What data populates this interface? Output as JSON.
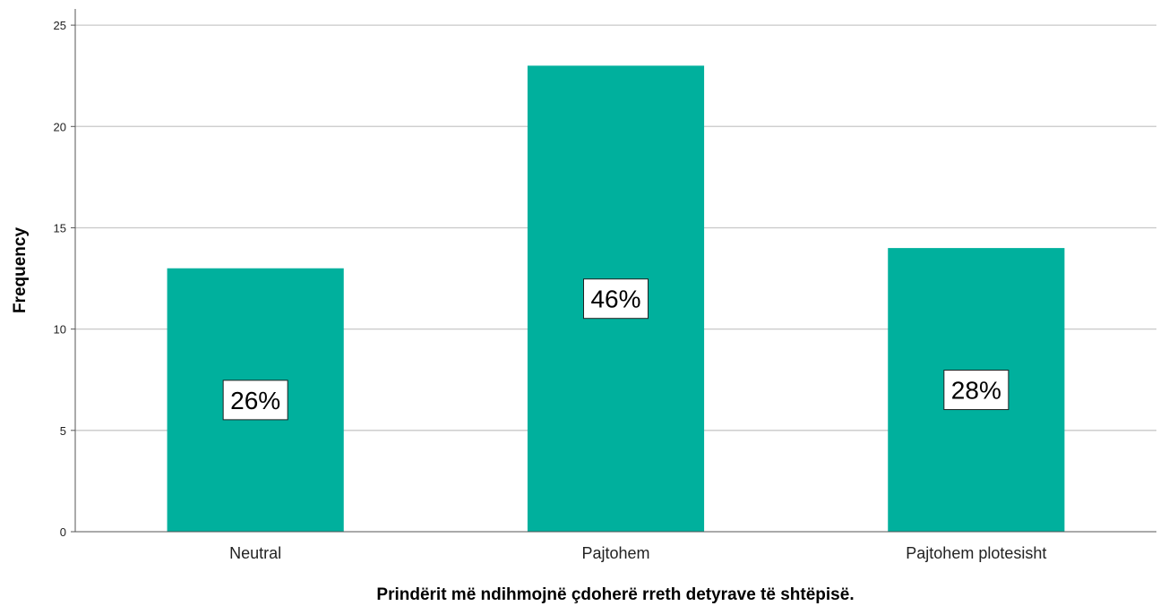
{
  "chart_data": {
    "type": "bar",
    "categories": [
      "Neutral",
      "Pajtohem",
      "Pajtohem plotesisht"
    ],
    "values": [
      13,
      23,
      14
    ],
    "data_labels": [
      "26%",
      "46%",
      "28%"
    ],
    "xlabel": "Prindërit më ndihmojnë çdoherë rreth detyrave të shtëpisë.",
    "ylabel": "Frequency",
    "ylim": [
      0,
      25.8
    ],
    "yticks": [
      0,
      5,
      10,
      15,
      20,
      25
    ],
    "grid": true,
    "bar_color": "#00b09d"
  }
}
